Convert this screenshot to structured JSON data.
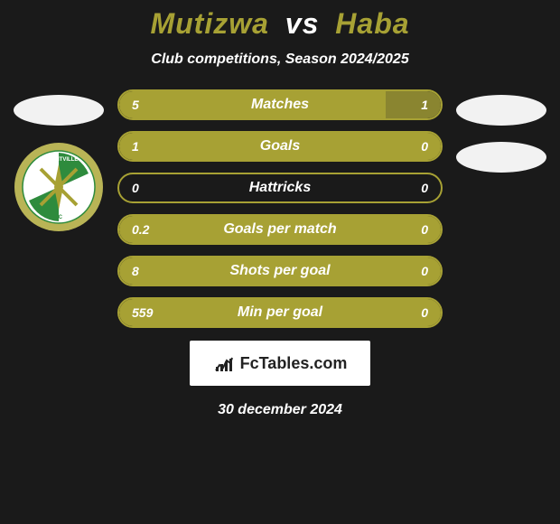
{
  "title": {
    "player1": "Mutizwa",
    "vs": "vs",
    "player2": "Haba",
    "player1_color": "#a7a134",
    "vs_color": "#ffffff",
    "player2_color": "#a7a134"
  },
  "subtitle": "Club competitions, Season 2024/2025",
  "date": "30 december 2024",
  "logo_text": "FcTables.com",
  "colors": {
    "accent": "#a7a134",
    "accent_dark": "#6b6a22",
    "fill_dark": "#8a8530",
    "background": "#1a1a1a",
    "side_ellipse_left": "#f2f2f2",
    "side_ellipse_right": "#f2f2f2"
  },
  "club_badges": {
    "left": {
      "ring_color": "#b9b456",
      "inner_color": "#ffffff",
      "stripe_color": "#2e8b3d",
      "text_color": "#2e8b3d"
    }
  },
  "bars": [
    {
      "label": "Matches",
      "left": "5",
      "right": "1",
      "left_pct": 83,
      "right_pct": 17
    },
    {
      "label": "Goals",
      "left": "1",
      "right": "0",
      "left_pct": 100,
      "right_pct": 0
    },
    {
      "label": "Hattricks",
      "left": "0",
      "right": "0",
      "left_pct": 0,
      "right_pct": 0
    },
    {
      "label": "Goals per match",
      "left": "0.2",
      "right": "0",
      "left_pct": 100,
      "right_pct": 0
    },
    {
      "label": "Shots per goal",
      "left": "8",
      "right": "0",
      "left_pct": 100,
      "right_pct": 0
    },
    {
      "label": "Min per goal",
      "left": "559",
      "right": "0",
      "left_pct": 100,
      "right_pct": 0
    }
  ],
  "bar_style": {
    "height": 34,
    "border_radius": 17,
    "border_color": "#a7a134",
    "fill_color": "#a7a134",
    "label_fontsize": 16,
    "value_fontsize": 14
  }
}
